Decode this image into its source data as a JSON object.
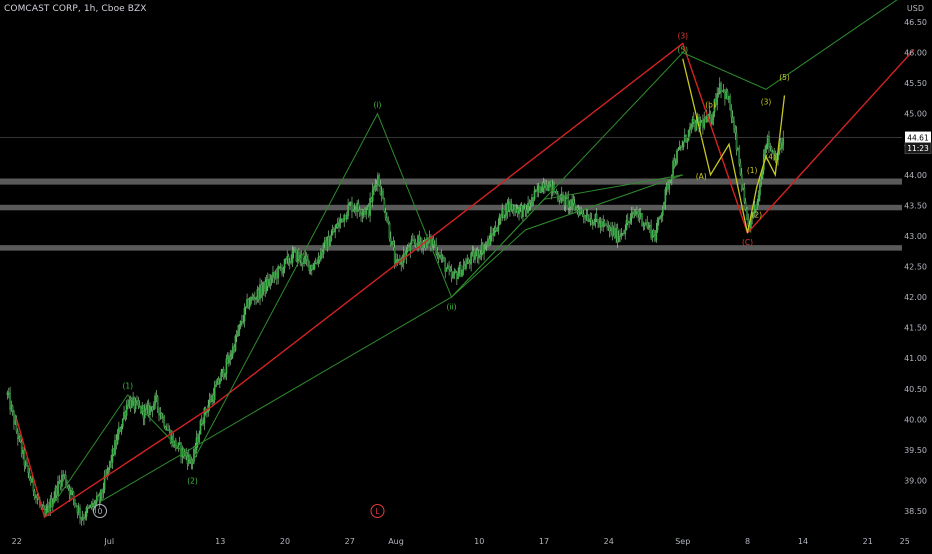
{
  "header": {
    "title": "COMCAST CORP, 1h, Cboe BZX",
    "currency": "USD"
  },
  "colors": {
    "background": "#000000",
    "candle_up": "#3fb24b",
    "candle_down": "#1f6a2a",
    "wick": "#9adf9a",
    "red_channel": "#d42222",
    "green_lines": "#2e8c2e",
    "yellow_wave": "#c8c820",
    "support_band": "#6a6a6a",
    "axis_text": "#b2b5be",
    "price_tag": "#ffffff"
  },
  "price_tags": {
    "last_price": "44.61",
    "countdown": "11:23"
  },
  "chart_data": {
    "type": "candlestick",
    "title": "COMCAST CORP, 1h, Cboe BZX",
    "ylim": [
      38.32,
      46.73
    ],
    "y_ticks": [
      38.5,
      39.0,
      39.5,
      40.0,
      40.5,
      41.0,
      41.5,
      42.0,
      42.5,
      43.0,
      43.5,
      44.0,
      44.5,
      45.0,
      45.5,
      46.0,
      46.5
    ],
    "y_tick_labels": [
      "38.50",
      "39.00",
      "39.50",
      "40.00",
      "40.50",
      "41.00",
      "41.50",
      "42.00",
      "42.50",
      "43.00",
      "43.50",
      "44.00",
      "44.50",
      "45.00",
      "45.50",
      "46.00",
      "46.50"
    ],
    "x_tick_labels": [
      "22",
      "Jul",
      "13",
      "20",
      "27",
      "Aug",
      "10",
      "17",
      "24",
      "Sep",
      "8",
      "14",
      "21",
      "25"
    ],
    "x_tick_days": [
      -9,
      1,
      13,
      20,
      27,
      32,
      41,
      48,
      55,
      63,
      70,
      76,
      83,
      87
    ],
    "last_price": 44.61,
    "support_bands": [
      {
        "low": 43.84,
        "high": 43.94
      },
      {
        "low": 43.42,
        "high": 43.51
      },
      {
        "low": 42.76,
        "high": 42.85
      }
    ],
    "candle_anchors": [
      [
        -10,
        40.4
      ],
      [
        -8,
        39.2
      ],
      [
        -6,
        38.4
      ],
      [
        -4,
        39.1
      ],
      [
        -2,
        38.4
      ],
      [
        0,
        38.7
      ],
      [
        3,
        40.3
      ],
      [
        5,
        40.1
      ],
      [
        6,
        40.3
      ],
      [
        8,
        39.6
      ],
      [
        10,
        39.3
      ],
      [
        11,
        40.0
      ],
      [
        14,
        41.0
      ],
      [
        16,
        41.9
      ],
      [
        18,
        42.2
      ],
      [
        21,
        42.7
      ],
      [
        23,
        42.5
      ],
      [
        25,
        43.0
      ],
      [
        27,
        43.5
      ],
      [
        29,
        43.4
      ],
      [
        30,
        44.0
      ],
      [
        31,
        43.3
      ],
      [
        32,
        42.5
      ],
      [
        34,
        42.9
      ],
      [
        36,
        42.9
      ],
      [
        38,
        42.3
      ],
      [
        40,
        42.6
      ],
      [
        42,
        42.9
      ],
      [
        44,
        43.5
      ],
      [
        46,
        43.4
      ],
      [
        48,
        43.9
      ],
      [
        50,
        43.6
      ],
      [
        52,
        43.4
      ],
      [
        54,
        43.2
      ],
      [
        56,
        43.0
      ],
      [
        58,
        43.4
      ],
      [
        60,
        43.0
      ],
      [
        61,
        43.6
      ],
      [
        62,
        44.2
      ],
      [
        64,
        44.8
      ],
      [
        66,
        44.9
      ],
      [
        67,
        45.5
      ],
      [
        68,
        45.2
      ],
      [
        69,
        44.3
      ],
      [
        70,
        43.1
      ],
      [
        71,
        43.5
      ],
      [
        72,
        44.6
      ],
      [
        73,
        44.3
      ],
      [
        74,
        44.6
      ]
    ],
    "channels": [
      {
        "name": "",
        "color": "red",
        "points": [
          [
            -9,
            40.0
          ],
          [
            -6,
            38.4
          ],
          [
            12,
            40.2
          ],
          [
            63,
            46.15
          ],
          [
            70,
            43.05
          ],
          [
            88,
            46.05
          ]
        ]
      },
      {
        "name": "",
        "color": "green",
        "points": [
          [
            -6,
            38.4
          ],
          [
            3,
            40.4
          ],
          [
            10,
            39.3
          ],
          [
            30,
            45.0
          ],
          [
            38,
            42.0
          ],
          [
            63,
            46.0
          ],
          [
            72,
            45.4
          ],
          [
            87,
            46.95
          ]
        ]
      },
      {
        "name": "",
        "color": "green",
        "points": [
          [
            0,
            38.65
          ],
          [
            38,
            42.0
          ],
          [
            48,
            43.6
          ],
          [
            63,
            44.0
          ]
        ]
      },
      {
        "name": "",
        "color": "green",
        "points": [
          [
            38,
            42.0
          ],
          [
            46,
            43.1
          ],
          [
            63,
            44.0
          ]
        ]
      }
    ],
    "yellow_wave": [
      [
        63,
        45.9
      ],
      [
        66,
        44.0
      ],
      [
        68,
        44.5
      ],
      [
        70,
        43.05
      ],
      [
        71,
        43.8
      ],
      [
        72,
        44.3
      ],
      [
        73,
        44.0
      ],
      [
        74,
        45.3
      ]
    ],
    "wave_labels": [
      {
        "text": "(1)",
        "day": 3,
        "price": 40.55,
        "color": "green",
        "circle": false
      },
      {
        "text": "(2)",
        "day": 10,
        "price": 39.0,
        "color": "green",
        "circle": false
      },
      {
        "text": "(i)",
        "day": 30,
        "price": 45.15,
        "color": "green",
        "circle": false
      },
      {
        "text": "(ii)",
        "day": 38,
        "price": 41.85,
        "color": "green",
        "circle": false
      },
      {
        "text": "(3)",
        "day": 63,
        "price": 46.28,
        "color": "red",
        "circle": false
      },
      {
        "text": "(5)",
        "day": 63,
        "price": 46.05,
        "color": "green",
        "circle": false
      },
      {
        "text": "(b)",
        "day": 66,
        "price": 45.15,
        "color": "yellow",
        "circle": false
      },
      {
        "text": "(A)",
        "day": 65,
        "price": 43.98,
        "color": "yellow",
        "circle": false
      },
      {
        "text": "(1)",
        "day": 70.5,
        "price": 44.08,
        "color": "yellow",
        "circle": false
      },
      {
        "text": "(2)",
        "day": 71,
        "price": 43.35,
        "color": "yellow",
        "circle": false
      },
      {
        "text": "(3)",
        "day": 72,
        "price": 45.2,
        "color": "yellow",
        "circle": false
      },
      {
        "text": "(4)",
        "day": 72.5,
        "price": 44.3,
        "color": "yellow",
        "circle": false
      },
      {
        "text": "(5)",
        "day": 74,
        "price": 45.6,
        "color": "yellow",
        "circle": false
      },
      {
        "text": "(C)",
        "day": 70,
        "price": 42.9,
        "color": "red",
        "circle": false
      },
      {
        "text": "0",
        "day": 0,
        "price": 38.5,
        "color": "gray",
        "circle": true
      },
      {
        "text": "L",
        "day": 30,
        "price": 38.5,
        "color": "red",
        "circle": true
      }
    ]
  }
}
